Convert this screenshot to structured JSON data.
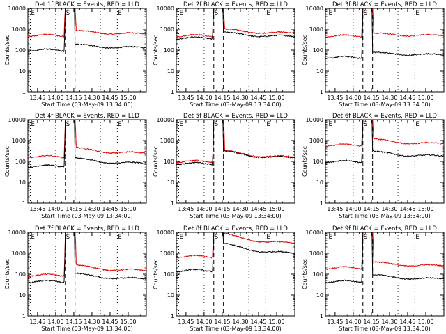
{
  "chart_data": {
    "type": "line",
    "layout": {
      "rows": 3,
      "cols": 3
    },
    "x_ticks": [
      "13:45",
      "14:00",
      "14:15",
      "14:30",
      "14:45",
      "15:00"
    ],
    "x_tick_minutes": [
      0,
      15,
      30,
      45,
      60,
      75
    ],
    "x_range_minutes": [
      -8,
      90
    ],
    "y_range": [
      1,
      10000
    ],
    "y_scale": "log",
    "y_ticks": [
      "1",
      "10",
      "100",
      "1000",
      "10000"
    ],
    "ylabel": "Counts/sec",
    "xlabel": "Start Time (03-May-09 13:34:00)",
    "markers": [
      {
        "label": "E",
        "minute": -6,
        "line": "dotted"
      },
      {
        "label": "S",
        "minute": 23,
        "line": "dashed"
      },
      {
        "label": "",
        "minute": 31,
        "line": "dashed"
      },
      {
        "label": "E",
        "minute": 66,
        "line": "dotted"
      }
    ],
    "dotted_lines_minutes": [
      15,
      52
    ],
    "series_colors": {
      "events": "#000000",
      "lld": "#e00000"
    },
    "panels": [
      {
        "title": "Det 1f BLACK = Events, RED = LLD",
        "events_base": 100,
        "lld_base": 500,
        "events_after": 130,
        "lld_after": 600,
        "decay": 0.15
      },
      {
        "title": "Det 2f BLACK = Events, RED = LLD",
        "events_base": 380,
        "lld_base": 500,
        "events_after": 450,
        "lld_after": 650,
        "decay": 0.2
      },
      {
        "title": "Det 3f BLACK = Events, RED = LLD",
        "events_base": 45,
        "lld_base": 480,
        "events_after": 60,
        "lld_after": 500,
        "decay": 0.1
      },
      {
        "title": "Det 4f BLACK = Events, RED = LLD",
        "events_base": 60,
        "lld_base": 170,
        "events_after": 80,
        "lld_after": 250,
        "decay": 0.3
      },
      {
        "title": "Det 5f BLACK = Events, RED = LLD",
        "events_base": 80,
        "lld_base": 100,
        "events_after": 150,
        "lld_after": 160,
        "decay": 0.4
      },
      {
        "title": "Det 6f BLACK = Events, RED = LLD",
        "events_base": 100,
        "lld_base": 600,
        "events_after": 180,
        "lld_after": 700,
        "decay": 0.25
      },
      {
        "title": "Det 7f BLACK = Events, RED = LLD",
        "events_base": 45,
        "lld_base": 90,
        "events_after": 60,
        "lld_after": 150,
        "decay": 0.3
      },
      {
        "title": "Det 8f BLACK = Events, RED = LLD",
        "events_base": 150,
        "lld_base": 700,
        "events_after": 1000,
        "lld_after": 3000,
        "decay": 0.7
      },
      {
        "title": "Det 9f BLACK = Events, RED = LLD",
        "events_base": 45,
        "lld_base": 200,
        "events_after": 60,
        "lld_after": 250,
        "decay": 0.2
      }
    ]
  }
}
